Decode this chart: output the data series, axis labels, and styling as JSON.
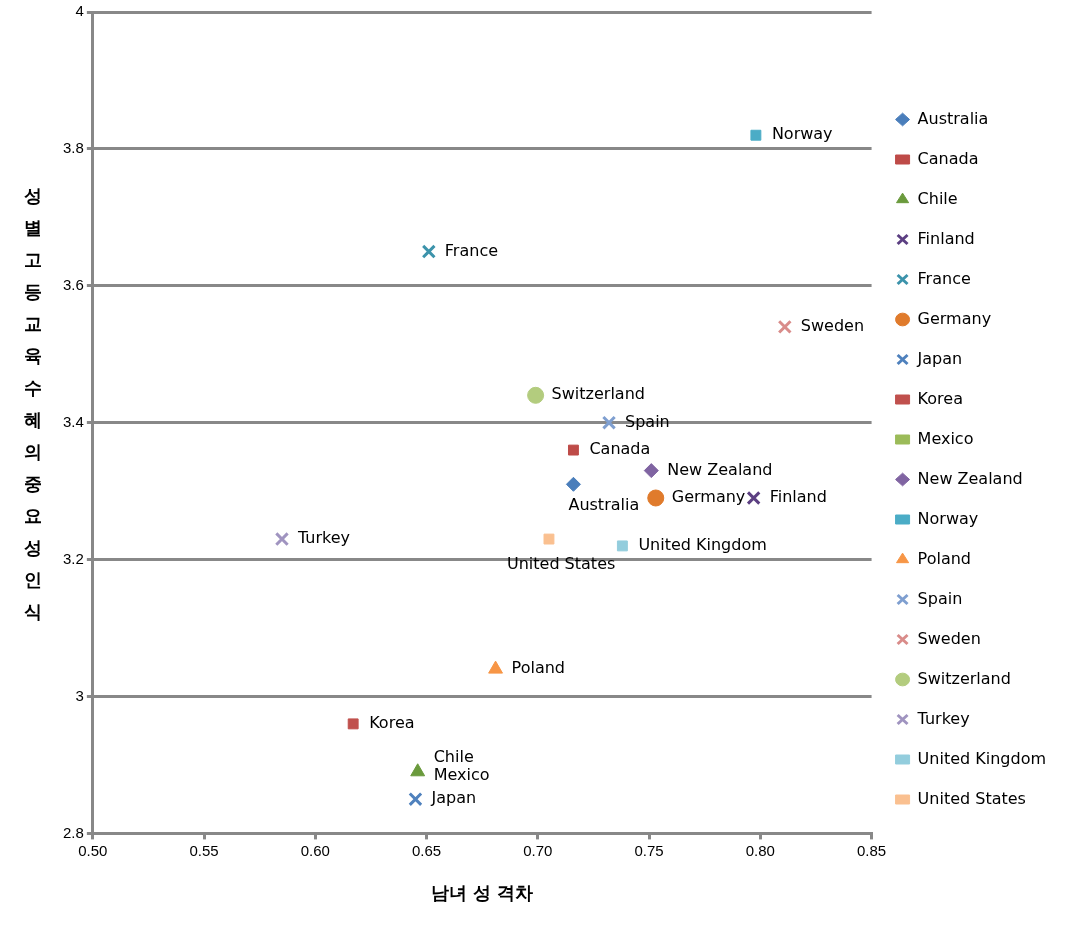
{
  "chart_data": {
    "type": "scatter",
    "xlabel": "남녀 성 격차",
    "ylabel": "성별고등교육수혜의중요성인식",
    "xlim": [
      0.5,
      0.85
    ],
    "xticks": [
      {
        "value": 0.5,
        "label": "0.50"
      },
      {
        "value": 0.55,
        "label": "0.55"
      },
      {
        "value": 0.6,
        "label": "0.60"
      },
      {
        "value": 0.65,
        "label": "0.65"
      },
      {
        "value": 0.7,
        "label": "0.70"
      },
      {
        "value": 0.75,
        "label": "0.75"
      },
      {
        "value": 0.8,
        "label": "0.80"
      },
      {
        "value": 0.85,
        "label": "0.85"
      }
    ],
    "ylim": [
      2.8,
      4
    ],
    "yticks": [
      2.8,
      3,
      3.2,
      3.4,
      3.6,
      3.8,
      4
    ],
    "grid": "y",
    "legend": "right",
    "series": [
      {
        "name": "Australia",
        "color": "#4a7ebb",
        "marker": "diamond",
        "x": [
          0.716
        ],
        "values": [
          3.31
        ]
      },
      {
        "name": "Canada",
        "color": "#be4b48",
        "marker": "square",
        "x": [
          0.716
        ],
        "values": [
          3.36
        ]
      },
      {
        "name": "Chile",
        "color": "#6a9a3c",
        "marker": "triangle",
        "x": [
          0.646
        ],
        "values": [
          2.89
        ]
      },
      {
        "name": "Finland",
        "color": "#5c3f82",
        "marker": "cross",
        "x": [
          0.797
        ],
        "values": [
          3.29
        ]
      },
      {
        "name": "France",
        "color": "#3c93ab",
        "marker": "cross",
        "x": [
          0.651
        ],
        "values": [
          3.65
        ]
      },
      {
        "name": "Germany",
        "color": "#e07b2c",
        "marker": "circle",
        "x": [
          0.753
        ],
        "values": [
          3.29
        ]
      },
      {
        "name": "Japan",
        "color": "#4f81bd",
        "marker": "cross",
        "x": [
          0.645
        ],
        "values": [
          2.85
        ]
      },
      {
        "name": "Korea",
        "color": "#c0504d",
        "marker": "square",
        "x": [
          0.617
        ],
        "values": [
          2.96
        ]
      },
      {
        "name": "Mexico",
        "color": "#9bbb59",
        "marker": "square",
        "x": [
          null
        ],
        "values": [
          null
        ]
      },
      {
        "name": "New Zealand",
        "color": "#8064a2",
        "marker": "diamond",
        "x": [
          0.751
        ],
        "values": [
          3.33
        ]
      },
      {
        "name": "Norway",
        "color": "#4bacc6",
        "marker": "square",
        "x": [
          0.798
        ],
        "values": [
          3.82
        ]
      },
      {
        "name": "Poland",
        "color": "#f79646",
        "marker": "triangle",
        "x": [
          0.681
        ],
        "values": [
          3.04
        ]
      },
      {
        "name": "Spain",
        "color": "#7f9fd0",
        "marker": "cross",
        "x": [
          0.732
        ],
        "values": [
          3.4
        ]
      },
      {
        "name": "Sweden",
        "color": "#d98c8a",
        "marker": "cross",
        "x": [
          0.811
        ],
        "values": [
          3.54
        ]
      },
      {
        "name": "Switzerland",
        "color": "#b3cc7e",
        "marker": "circle",
        "x": [
          0.699
        ],
        "values": [
          3.44
        ]
      },
      {
        "name": "Turkey",
        "color": "#a094c0",
        "marker": "cross",
        "x": [
          0.585
        ],
        "values": [
          3.23
        ]
      },
      {
        "name": "United Kingdom",
        "color": "#93cddd",
        "marker": "square",
        "x": [
          0.738
        ],
        "values": [
          3.22
        ]
      },
      {
        "name": "United States",
        "color": "#fac090",
        "marker": "square",
        "x": [
          0.705
        ],
        "values": [
          3.23
        ]
      }
    ]
  }
}
